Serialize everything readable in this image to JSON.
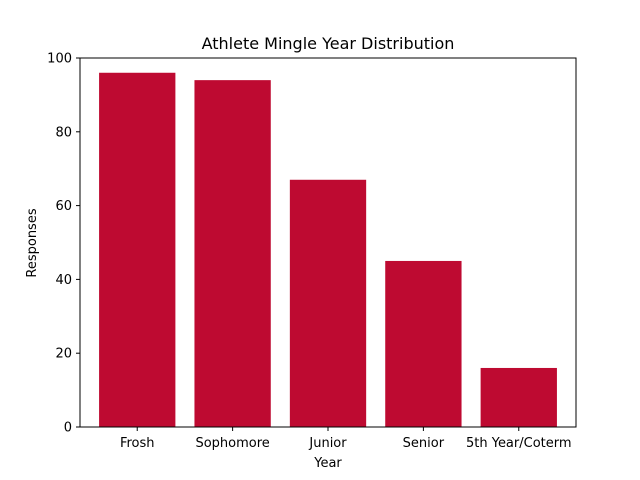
{
  "chart_data": {
    "type": "bar",
    "title": "Athlete Mingle Year Distribution",
    "xlabel": "Year",
    "ylabel": "Responses",
    "categories": [
      "Frosh",
      "Sophomore",
      "Junior",
      "Senior",
      "5th Year/Coterm"
    ],
    "values": [
      96,
      94,
      67,
      45,
      16
    ],
    "ylim": [
      0,
      100
    ],
    "yticks": [
      0,
      20,
      40,
      60,
      80,
      100
    ],
    "bar_color": "#be0a31",
    "grid": false,
    "legend": "none"
  }
}
